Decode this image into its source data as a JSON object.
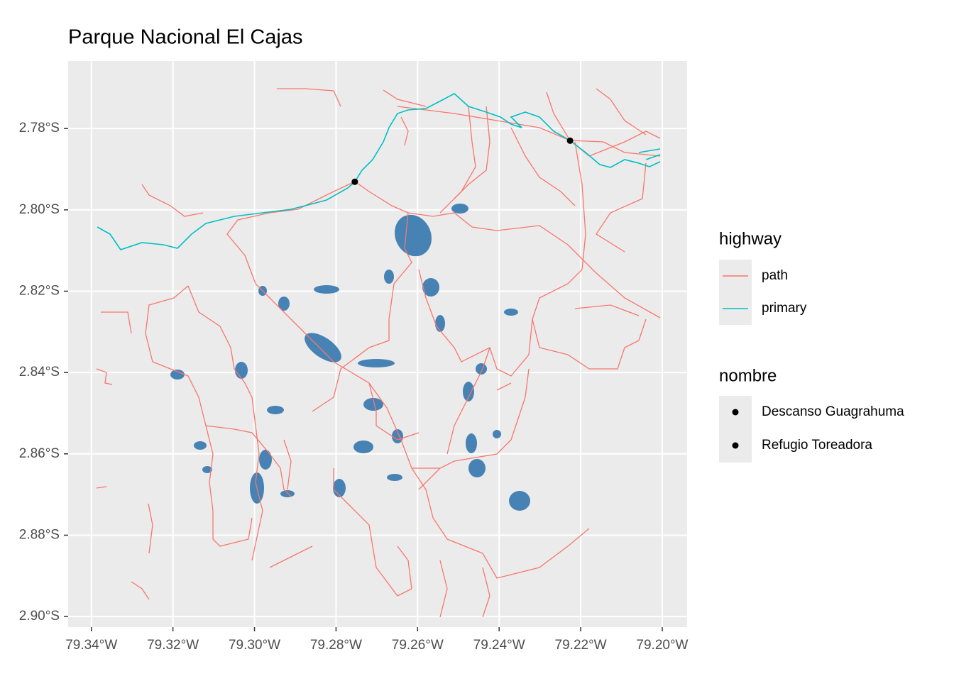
{
  "chart_data": {
    "type": "map",
    "title": "Parque Nacional El Cajas",
    "xlim": [
      -79.3457,
      -79.1939
    ],
    "ylim": [
      -2.9026,
      -2.7634
    ],
    "xticks": [
      {
        "value": -79.34,
        "label": "79.34°W"
      },
      {
        "value": -79.32,
        "label": "79.32°W"
      },
      {
        "value": -79.3,
        "label": "79.30°W"
      },
      {
        "value": -79.28,
        "label": "79.28°W"
      },
      {
        "value": -79.26,
        "label": "79.26°W"
      },
      {
        "value": -79.24,
        "label": "79.24°W"
      },
      {
        "value": -79.22,
        "label": "79.22°W"
      },
      {
        "value": -79.2,
        "label": "79.20°W"
      }
    ],
    "yticks": [
      {
        "value": -2.78,
        "label": "2.78°S"
      },
      {
        "value": -2.8,
        "label": "2.80°S"
      },
      {
        "value": -2.82,
        "label": "2.82°S"
      },
      {
        "value": -2.84,
        "label": "2.84°S"
      },
      {
        "value": -2.86,
        "label": "2.86°S"
      },
      {
        "value": -2.88,
        "label": "2.88°S"
      },
      {
        "value": -2.9,
        "label": "2.90°S"
      }
    ],
    "grid": true,
    "lines_legend_title": "highway",
    "lines": [
      {
        "name": "path",
        "color": "#F8766D"
      },
      {
        "name": "primary",
        "color": "#00BFC4"
      }
    ],
    "points_legend_title": "nombre",
    "points": [
      {
        "name": "Descanso Guagrahuma",
        "x": -79.2754,
        "y": -2.7931,
        "color": "#000000"
      },
      {
        "name": "Refugio Toreadora",
        "x": -79.2226,
        "y": -2.783,
        "color": "#000000"
      }
    ],
    "lake_color": "#4682B4"
  }
}
